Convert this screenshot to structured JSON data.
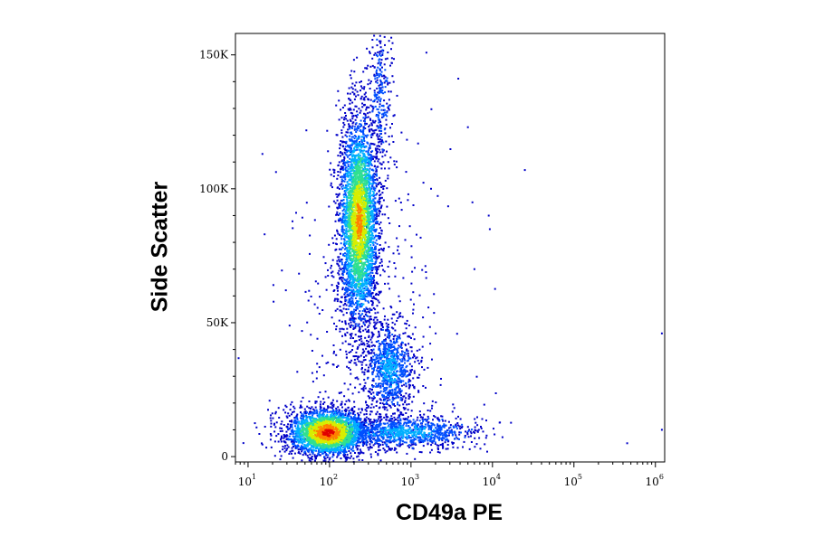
{
  "chart_data": {
    "type": "scatter",
    "subtype": "flow-cytometry-density-dot-plot",
    "xlabel": "CD49a PE",
    "ylabel": "Side Scatter",
    "x_scale": "log",
    "xlim": [
      7,
      1300000
    ],
    "ylim": [
      -2000,
      158000
    ],
    "x_ticks": [
      {
        "value": 10,
        "base": "10",
        "exp": "1"
      },
      {
        "value": 100,
        "base": "10",
        "exp": "2"
      },
      {
        "value": 1000,
        "base": "10",
        "exp": "3"
      },
      {
        "value": 10000,
        "base": "10",
        "exp": "4"
      },
      {
        "value": 100000,
        "base": "10",
        "exp": "5"
      },
      {
        "value": 1000000,
        "base": "10",
        "exp": "6"
      }
    ],
    "y_ticks": [
      {
        "value": 0,
        "label": "0"
      },
      {
        "value": 50000,
        "label": "50K"
      },
      {
        "value": 100000,
        "label": "100K"
      },
      {
        "value": 150000,
        "label": "150K"
      }
    ],
    "grid": false,
    "legend": "none",
    "color_scale": [
      "#0000c8",
      "#0050ff",
      "#00b0ff",
      "#30e090",
      "#d8ee00",
      "#ff8000",
      "#e00000"
    ],
    "populations": [
      {
        "x_median": 95,
        "x_log_sd": 0.25,
        "y_mean": 9000,
        "y_sd": 4500,
        "n": 2600,
        "peak_level": 6
      },
      {
        "x_median": 230,
        "x_log_sd": 0.12,
        "y_mean": 88000,
        "y_sd": 20000,
        "n": 3800,
        "peak_level": 5
      },
      {
        "x_median": 550,
        "x_log_sd": 0.14,
        "y_mean": 33000,
        "y_sd": 8000,
        "n": 900,
        "peak_level": 2
      },
      {
        "x_median": 800,
        "x_log_sd": 0.45,
        "y_mean": 9000,
        "y_sd": 3000,
        "n": 1100,
        "peak_level": 2
      },
      {
        "x_median": 420,
        "x_log_sd": 0.06,
        "y_mean": 135000,
        "y_sd": 14000,
        "n": 280,
        "peak_level": 1
      },
      {
        "x_median": 300,
        "x_log_sd": 0.5,
        "y_mean": 50000,
        "y_sd": 38000,
        "n": 450,
        "peak_level": 0
      }
    ],
    "outliers": [
      {
        "x": 25000,
        "y": 107000
      },
      {
        "x": 450000,
        "y": 5000
      },
      {
        "x": 15,
        "y": 113000
      },
      {
        "x": 5000,
        "y": 123000
      },
      {
        "x": 9000,
        "y": 90000
      },
      {
        "x": 1200000,
        "y": 46000
      },
      {
        "x": 1200000,
        "y": 10000
      },
      {
        "x": 6000,
        "y": 70000
      }
    ]
  }
}
